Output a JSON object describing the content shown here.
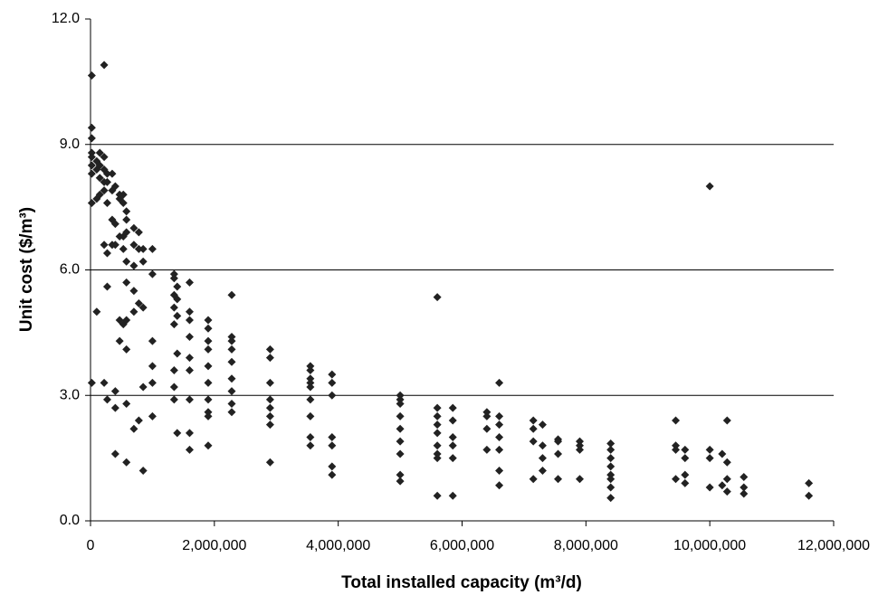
{
  "chart_data": {
    "type": "scatter",
    "x_label": "Total installed capacity (m³/d)",
    "y_label": "Unit cost ($/m³)",
    "color": "#222222",
    "grid": true,
    "xlim": [
      0,
      12000000
    ],
    "ylim": [
      0,
      12
    ],
    "xticks": [
      0,
      {
        "value": 2000000,
        "label": "2,000,000"
      },
      {
        "value": 4000000,
        "label": "4,000,000"
      },
      {
        "value": 6000000,
        "label": "6,000,000"
      },
      {
        "value": 8000000,
        "label": "8,000,000"
      },
      {
        "value": 10000000,
        "label": "10,000,000"
      },
      {
        "value": 12000000,
        "label": "12,000,000"
      }
    ],
    "yticks": [
      {
        "value": 0,
        "label": "0.0"
      },
      {
        "value": 3,
        "label": "3.0"
      },
      {
        "value": 6,
        "label": "6.0"
      },
      {
        "value": 9,
        "label": "9.0"
      },
      {
        "value": 12,
        "label": "12.0"
      }
    ],
    "x": [
      20000,
      20000,
      20000,
      20000,
      20000,
      20000,
      20000,
      20000,
      20000,
      100000,
      100000,
      100000,
      100000,
      150000,
      150000,
      150000,
      150000,
      220000,
      220000,
      220000,
      220000,
      220000,
      220000,
      220000,
      270000,
      270000,
      270000,
      270000,
      270000,
      270000,
      350000,
      350000,
      350000,
      350000,
      400000,
      400000,
      400000,
      400000,
      400000,
      400000,
      470000,
      470000,
      470000,
      470000,
      470000,
      530000,
      530000,
      530000,
      530000,
      530000,
      580000,
      580000,
      580000,
      580000,
      580000,
      580000,
      580000,
      580000,
      580000,
      700000,
      700000,
      700000,
      700000,
      700000,
      700000,
      780000,
      780000,
      780000,
      780000,
      850000,
      850000,
      850000,
      850000,
      850000,
      1000000,
      1000000,
      1000000,
      1000000,
      1000000,
      1000000,
      1350000,
      1350000,
      1350000,
      1350000,
      1350000,
      1350000,
      1350000,
      1350000,
      1400000,
      1400000,
      1400000,
      1400000,
      1400000,
      1600000,
      1600000,
      1600000,
      1600000,
      1600000,
      1600000,
      1600000,
      1600000,
      1600000,
      1900000,
      1900000,
      1900000,
      1900000,
      1900000,
      1900000,
      1900000,
      1900000,
      1900000,
      1900000,
      2280000,
      2280000,
      2280000,
      2280000,
      2280000,
      2280000,
      2280000,
      2280000,
      2280000,
      2900000,
      2900000,
      2900000,
      2900000,
      2900000,
      2900000,
      2900000,
      2900000,
      3550000,
      3550000,
      3550000,
      3550000,
      3550000,
      3550000,
      3550000,
      3550000,
      3550000,
      3900000,
      3900000,
      3900000,
      3900000,
      3900000,
      3900000,
      3900000,
      5000000,
      5000000,
      5000000,
      5000000,
      5000000,
      5000000,
      5000000,
      5000000,
      5000000,
      5600000,
      5600000,
      5600000,
      5600000,
      5600000,
      5600000,
      5600000,
      5600000,
      5600000,
      5850000,
      5850000,
      5850000,
      5850000,
      5850000,
      5850000,
      6400000,
      6400000,
      6400000,
      6400000,
      6600000,
      6600000,
      6600000,
      6600000,
      6600000,
      6600000,
      6600000,
      7150000,
      7150000,
      7150000,
      7150000,
      7300000,
      7300000,
      7300000,
      7300000,
      7550000,
      7550000,
      7550000,
      7550000,
      7900000,
      7900000,
      7900000,
      7900000,
      8400000,
      8400000,
      8400000,
      8400000,
      8400000,
      8400000,
      8400000,
      8400000,
      9450000,
      9450000,
      9450000,
      9450000,
      9600000,
      9600000,
      9600000,
      9600000,
      10000000,
      10000000,
      10000000,
      10000000,
      10200000,
      10200000,
      10280000,
      10280000,
      10280000,
      10280000,
      10550000,
      10550000,
      10550000,
      11600000,
      11600000
    ],
    "values": [
      10.65,
      9.4,
      9.15,
      8.8,
      8.7,
      8.5,
      8.3,
      7.6,
      3.3,
      8.6,
      8.4,
      7.7,
      5.0,
      8.8,
      8.5,
      8.2,
      7.8,
      10.9,
      8.7,
      8.4,
      8.1,
      7.9,
      6.6,
      3.3,
      8.3,
      8.1,
      7.6,
      6.4,
      5.6,
      2.9,
      8.3,
      7.9,
      7.2,
      6.6,
      8.0,
      7.1,
      6.6,
      3.1,
      2.7,
      1.6,
      7.8,
      7.7,
      6.8,
      4.8,
      4.3,
      7.8,
      7.6,
      6.8,
      6.5,
      4.7,
      7.4,
      7.2,
      6.9,
      6.2,
      5.7,
      4.8,
      4.1,
      2.8,
      1.4,
      7.0,
      6.6,
      6.1,
      5.5,
      5.0,
      2.2,
      6.9,
      6.5,
      5.2,
      2.4,
      6.5,
      6.2,
      5.1,
      3.2,
      1.2,
      6.5,
      5.9,
      4.3,
      3.7,
      3.3,
      2.5,
      5.9,
      5.8,
      5.4,
      5.1,
      4.7,
      3.6,
      3.2,
      2.9,
      5.6,
      5.3,
      4.9,
      4.0,
      2.1,
      5.7,
      5.0,
      4.8,
      4.4,
      3.9,
      3.6,
      2.9,
      2.1,
      1.7,
      4.8,
      4.6,
      4.3,
      4.1,
      3.7,
      3.3,
      2.9,
      2.6,
      2.5,
      1.8,
      5.4,
      4.4,
      4.3,
      4.1,
      3.8,
      3.4,
      3.1,
      2.8,
      2.6,
      4.1,
      3.9,
      3.3,
      2.9,
      2.7,
      2.5,
      2.3,
      1.4,
      3.7,
      3.6,
      3.4,
      3.3,
      3.2,
      2.9,
      2.5,
      2.0,
      1.8,
      3.5,
      3.3,
      3.0,
      2.0,
      1.8,
      1.3,
      1.1,
      3.0,
      2.9,
      2.8,
      2.5,
      2.2,
      1.9,
      1.6,
      1.1,
      0.95,
      5.35,
      2.7,
      2.5,
      2.3,
      2.1,
      1.8,
      1.6,
      1.5,
      0.6,
      2.7,
      2.4,
      2.0,
      1.8,
      1.5,
      0.6,
      2.6,
      2.5,
      2.2,
      1.7,
      3.3,
      2.5,
      2.3,
      2.0,
      1.7,
      1.2,
      0.85,
      2.4,
      2.2,
      1.9,
      1.0,
      2.3,
      1.8,
      1.5,
      1.2,
      1.95,
      1.9,
      1.6,
      1.0,
      1.9,
      1.8,
      1.7,
      1.0,
      1.85,
      1.7,
      1.5,
      1.3,
      1.1,
      1.0,
      0.8,
      0.55,
      2.4,
      1.8,
      1.7,
      1.0,
      1.7,
      1.5,
      1.1,
      0.9,
      8.0,
      1.7,
      1.5,
      0.8,
      1.6,
      0.85,
      2.4,
      1.4,
      1.0,
      0.7,
      1.05,
      0.8,
      0.65,
      0.9,
      0.6
    ]
  }
}
